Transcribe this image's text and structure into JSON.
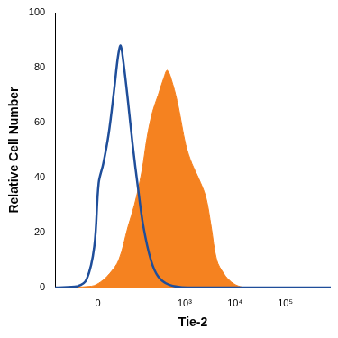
{
  "chart_data": {
    "type": "histogram",
    "x_label": "Tie-2",
    "y_label": "Relative Cell Number",
    "xlim": [
      -130,
      800000
    ],
    "xticks": [
      0,
      {
        "value": 1000,
        "label": "10³"
      },
      {
        "value": 10000,
        "label": "10⁴"
      },
      {
        "value": 100000,
        "label": "10⁵"
      }
    ],
    "ylim": [
      0,
      100
    ],
    "yticks": [
      0,
      20,
      40,
      60,
      80,
      100
    ],
    "grid": false,
    "series": [
      {
        "type": "line",
        "color": "#1f4e9a",
        "x": [
          -130,
          -40,
          -20,
          -6,
          1.5,
          9.5,
          19.6,
          31,
          40,
          47,
          55,
          70,
          89,
          116,
          150,
          212,
          297,
          490,
          1140,
          800000
        ],
        "values": [
          0,
          0.5,
          3,
          15,
          38,
          45,
          56,
          72,
          84,
          88,
          82,
          68,
          52,
          36,
          22,
          10,
          4,
          1,
          0,
          0
        ]
      },
      {
        "type": "area",
        "color": "#f58220",
        "x": [
          -130,
          -11,
          4.7,
          21,
          42,
          70,
          97,
          138,
          179,
          230,
          297,
          381,
          452,
          581,
          746,
          1050,
          1400,
          1870,
          2630,
          3380,
          4340,
          6030,
          8480,
          12900,
          21300,
          800000
        ],
        "values": [
          0,
          0.5,
          2,
          5,
          10,
          22,
          30,
          42,
          55,
          64,
          70,
          76,
          79,
          74,
          66,
          52,
          45,
          40,
          33,
          22,
          10,
          5,
          2,
          0.3,
          0,
          0
        ]
      }
    ]
  }
}
